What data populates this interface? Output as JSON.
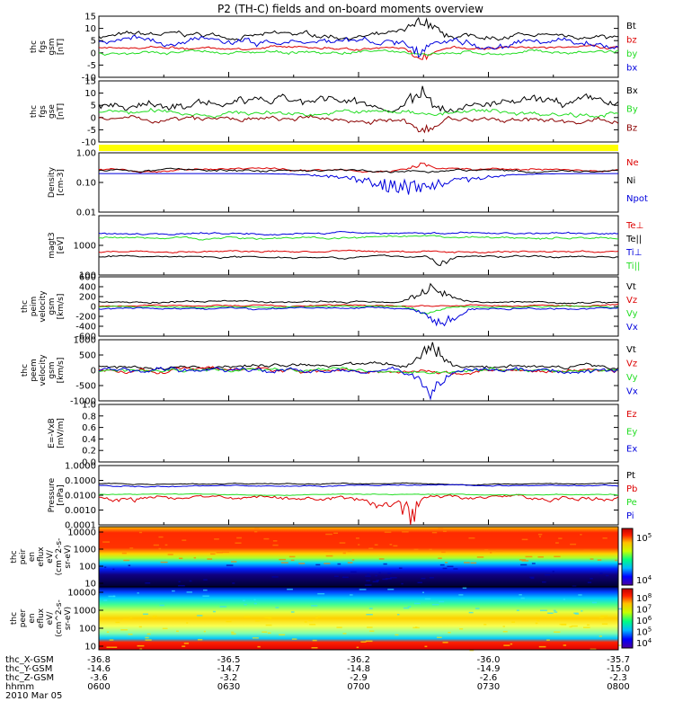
{
  "title": "P2 (TH-C) fields and on-board moments overview",
  "colors": {
    "black": "#000000",
    "red": "#dd0000",
    "green": "#22dd22",
    "blue": "#0000dd",
    "yellow": "#ffff00",
    "gray": "#b0b0b0"
  },
  "chart_data": {
    "type": "line",
    "x_ticks": [
      "0600",
      "0630",
      "0700",
      "0730",
      "0800"
    ],
    "x_ephemeris": [
      {
        "label": "thc_X-GSM",
        "values": [
          "-36.8",
          "-36.5",
          "-36.2",
          "-36.0",
          "-35.7"
        ]
      },
      {
        "label": "thc_Y-GSM",
        "values": [
          "-14.6",
          "-14.7",
          "-14.8",
          "-14.9",
          "-15.0"
        ]
      },
      {
        "label": "thc_Z-GSM",
        "values": [
          "-3.6",
          "-3.2",
          "-2.9",
          "-2.6",
          "-2.3"
        ]
      },
      {
        "label": "hhmm",
        "values": []
      }
    ],
    "date": "2010 Mar 05",
    "panels": [
      {
        "id": "fgs",
        "ylabel": [
          "thc",
          "fgs",
          "gsm",
          "[nT]"
        ],
        "ylim": [
          -10,
          15
        ],
        "scale": "linear",
        "ticks": [
          "15",
          "10",
          "5",
          "0",
          "-5",
          "-10"
        ],
        "series": [
          {
            "name": "Bt",
            "color": "#000000",
            "base": 7,
            "noise": 1.5,
            "events": [
              [
                0.62,
                6,
                0.03
              ]
            ]
          },
          {
            "name": "bz",
            "color": "#dd0000",
            "base": 2,
            "noise": 0.8,
            "events": [
              [
                0.62,
                -4,
                0.02
              ]
            ]
          },
          {
            "name": "by",
            "color": "#22dd22",
            "base": 0,
            "noise": 1.0,
            "events": []
          },
          {
            "name": "bx",
            "color": "#0000dd",
            "base": 4,
            "noise": 2.0,
            "events": [
              [
                0.62,
                -6,
                0.02
              ]
            ]
          }
        ]
      },
      {
        "id": "fgs-gse",
        "ylabel": [
          "thc",
          "fgs",
          "gse",
          "[nT]"
        ],
        "ylim": [
          -10,
          15
        ],
        "scale": "linear",
        "ticks": [
          "15",
          "10",
          "5",
          "0",
          "-5",
          "-10"
        ],
        "series": [
          {
            "name": "Bx",
            "color": "#000000",
            "base": 5,
            "noise": 2.5,
            "events": [
              [
                0.62,
                7,
                0.03
              ]
            ]
          },
          {
            "name": "By",
            "color": "#22dd22",
            "base": 2,
            "noise": 1.5,
            "events": []
          },
          {
            "name": "Bz",
            "color": "#8b0000",
            "base": -1,
            "noise": 1.5,
            "events": [
              [
                0.62,
                -4,
                0.03
              ]
            ]
          }
        ]
      },
      {
        "id": "density",
        "ylabel": [
          "Density",
          "[cm-3]"
        ],
        "ylim": [
          0.01,
          1.0
        ],
        "scale": "log",
        "ticks": [
          "1.00",
          "0.10",
          "0.01"
        ],
        "series": [
          {
            "name": "Ne",
            "color": "#dd0000",
            "base": 0.26,
            "noise": 0.03,
            "events": [
              [
                0.62,
                0.15,
                0.02
              ]
            ]
          },
          {
            "name": "Ni",
            "color": "#000000",
            "base": 0.25,
            "noise": 0.03,
            "events": []
          },
          {
            "name": "Npot",
            "color": "#0000dd",
            "base": 0.2,
            "noise": 0.0,
            "events": [
              [
                0.6,
                -0.12,
                0.15
              ]
            ]
          }
        ]
      },
      {
        "id": "temperature",
        "ylabel": [
          "magt3",
          "[eV]"
        ],
        "ylim": [
          100,
          10000
        ],
        "scale": "log",
        "ticks": [
          "1000",
          "100"
        ],
        "series": [
          {
            "name": "Te⊥",
            "color": "#dd0000",
            "base": 620,
            "noise": 60,
            "events": []
          },
          {
            "name": "Te||",
            "color": "#000000",
            "base": 420,
            "noise": 40,
            "events": [
              [
                0.66,
                -180,
                0.02
              ]
            ]
          },
          {
            "name": "Ti⊥",
            "color": "#0000dd",
            "base": 2600,
            "noise": 250,
            "events": []
          },
          {
            "name": "Ti||",
            "color": "#22dd22",
            "base": 1800,
            "noise": 200,
            "events": []
          }
        ]
      },
      {
        "id": "peim-velocity",
        "ylabel": [
          "thc",
          "peim",
          "velocity",
          "gsm",
          "[km/s]"
        ],
        "ylim": [
          -600,
          600
        ],
        "scale": "linear",
        "ticks": [
          "600",
          "400",
          "200",
          "0",
          "-200",
          "-400",
          "-600"
        ],
        "series": [
          {
            "name": "Vt",
            "color": "#000000",
            "base": 90,
            "noise": 25,
            "events": [
              [
                0.64,
                280,
                0.04
              ]
            ]
          },
          {
            "name": "Vz",
            "color": "#dd0000",
            "base": 15,
            "noise": 20,
            "events": []
          },
          {
            "name": "Vy",
            "color": "#22dd22",
            "base": -5,
            "noise": 20,
            "events": [
              [
                0.63,
                -120,
                0.03
              ]
            ]
          },
          {
            "name": "Vx",
            "color": "#0000dd",
            "base": -40,
            "noise": 25,
            "events": [
              [
                0.66,
                -250,
                0.04
              ]
            ]
          }
        ]
      },
      {
        "id": "peem-velocity",
        "ylabel": [
          "thc",
          "peem",
          "velocity",
          "gsm",
          "[km/s]"
        ],
        "ylim": [
          -1000,
          1000
        ],
        "scale": "linear",
        "ticks": [
          "1000",
          "500",
          "0",
          "-500",
          "-1000"
        ],
        "series": [
          {
            "name": "Vt",
            "color": "#000000",
            "base": 150,
            "noise": 90,
            "events": [
              [
                0.64,
                600,
                0.03
              ]
            ]
          },
          {
            "name": "Vz",
            "color": "#dd0000",
            "base": 0,
            "noise": 90,
            "events": []
          },
          {
            "name": "Vy",
            "color": "#22dd22",
            "base": 0,
            "noise": 80,
            "events": []
          },
          {
            "name": "Vx",
            "color": "#0000dd",
            "base": -20,
            "noise": 110,
            "events": [
              [
                0.64,
                -650,
                0.03
              ]
            ]
          }
        ]
      },
      {
        "id": "efield",
        "ylabel": [
          "E=-VxB",
          "[mV/m]"
        ],
        "ylim": [
          0.0,
          1.0
        ],
        "scale": "linear",
        "ticks": [
          "1.0",
          "0.8",
          "0.6",
          "0.4",
          "0.2",
          "0.0"
        ],
        "series": [
          {
            "name": "Ez",
            "color": "#dd0000",
            "base": null
          },
          {
            "name": "Ey",
            "color": "#22dd22",
            "base": null
          },
          {
            "name": "Ex",
            "color": "#0000dd",
            "base": null
          }
        ]
      },
      {
        "id": "pressure",
        "ylabel": [
          "Pressure",
          "[nPa]"
        ],
        "ylim": [
          0.0001,
          1.0
        ],
        "scale": "log",
        "ticks": [
          "1.0000",
          "0.1000",
          "0.0100",
          "0.0010",
          "0.0001"
        ],
        "series": [
          {
            "name": "Pt",
            "color": "#000000",
            "base": 0.06,
            "noise": 0.006,
            "events": []
          },
          {
            "name": "Pb",
            "color": "#dd0000",
            "base": 0.007,
            "noise": 0.003,
            "events": [
              [
                0.6,
                -0.005,
                0.03
              ]
            ]
          },
          {
            "name": "Pe",
            "color": "#22dd22",
            "base": 0.011,
            "noise": 0.001,
            "events": []
          },
          {
            "name": "Pi",
            "color": "#0000dd",
            "base": 0.045,
            "noise": 0.005,
            "events": []
          }
        ]
      }
    ],
    "spectrograms": [
      {
        "id": "peir",
        "ylabel": [
          "thc",
          "peir",
          "en",
          "eflux",
          "eV/",
          "(cm^2-s-",
          "sr-eV)"
        ],
        "yticks": [
          "10000",
          "1000",
          "100",
          "10"
        ],
        "cbar_ticks": [
          "10^5",
          "10^4"
        ]
      },
      {
        "id": "peer",
        "ylabel": [
          "thc",
          "peer",
          "en",
          "eflux",
          "eV/",
          "(cm^2-s-",
          "sr-eV)"
        ],
        "yticks": [
          "10000",
          "1000",
          "100",
          "10"
        ],
        "cbar_ticks": [
          "10^8",
          "10^7",
          "10^6",
          "10^5",
          "10^4"
        ]
      }
    ]
  }
}
